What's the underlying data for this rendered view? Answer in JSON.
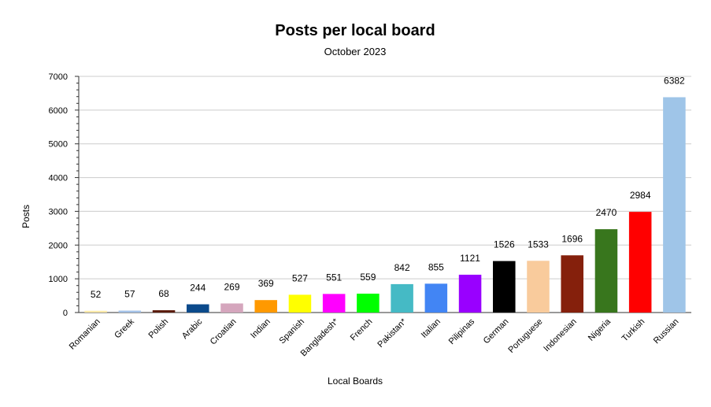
{
  "chart_data": {
    "type": "bar",
    "title": "Posts per local board",
    "subtitle": "October 2023",
    "xlabel": "Local Boards",
    "ylabel": "Posts",
    "ylim": [
      0,
      7000
    ],
    "yticks": [
      0,
      1000,
      2000,
      3000,
      4000,
      5000,
      6000,
      7000
    ],
    "grid": true,
    "categories": [
      "Romanian",
      "Greek",
      "Polish",
      "Arabic",
      "Croatian",
      "Indian",
      "Spanish",
      "Bangladesh*",
      "French",
      "Pakistan*",
      "Italian",
      "Pilipinas",
      "German",
      "Portuguese",
      "Indonesian",
      "Nigeria",
      "Turkish",
      "Russian"
    ],
    "values": [
      52,
      57,
      68,
      244,
      269,
      369,
      527,
      551,
      559,
      842,
      855,
      1121,
      1526,
      1533,
      1696,
      2470,
      2984,
      6382
    ],
    "colors": [
      "#fde9a8",
      "#a4c2e8",
      "#5a1a0a",
      "#0b4a8b",
      "#d5a6bd",
      "#ff9900",
      "#ffff00",
      "#ff00ff",
      "#00ff00",
      "#45bac5",
      "#4285f4",
      "#9900ff",
      "#000000",
      "#f9cb9c",
      "#85200c",
      "#38761d",
      "#ff0000",
      "#9fc5e8"
    ]
  }
}
